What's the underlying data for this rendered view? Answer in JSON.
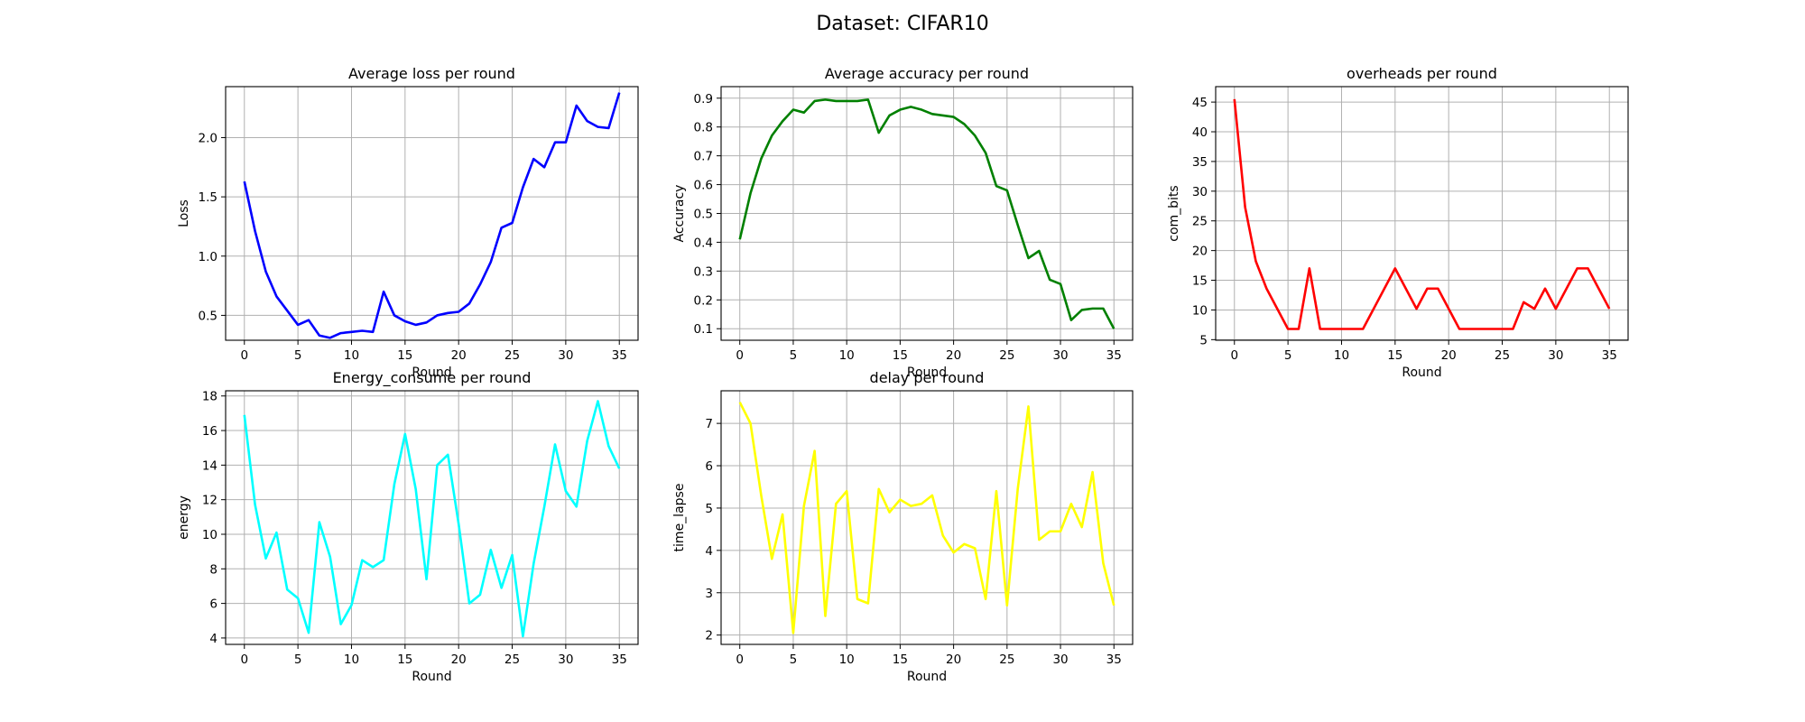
{
  "figure_title": "Dataset: CIFAR10",
  "chart_data": [
    {
      "type": "line",
      "title": "Average loss per round",
      "xlabel": "Round",
      "ylabel": "Loss",
      "xlim": [
        -1.75,
        36.75
      ],
      "ylim": [
        0.29,
        2.43
      ],
      "xticks": [
        0,
        5,
        10,
        15,
        20,
        25,
        30,
        35
      ],
      "yticks": [
        0.5,
        1.0,
        1.5,
        2.0
      ],
      "ytick_labels": [
        "0.5",
        "1.0",
        "1.5",
        "2.0"
      ],
      "grid": true,
      "color": "#0000ff",
      "series": [
        {
          "x": [
            0,
            1,
            2,
            3,
            4,
            5,
            6,
            7,
            8,
            9,
            10,
            11,
            12,
            13,
            14,
            15,
            16,
            17,
            18,
            19,
            20,
            21,
            22,
            23,
            24,
            25,
            26,
            27,
            28,
            29,
            30,
            31,
            32,
            33,
            34,
            35
          ],
          "values": [
            1.63,
            1.21,
            0.87,
            0.66,
            0.54,
            0.42,
            0.46,
            0.33,
            0.31,
            0.35,
            0.36,
            0.37,
            0.36,
            0.7,
            0.5,
            0.45,
            0.42,
            0.44,
            0.5,
            0.52,
            0.53,
            0.6,
            0.76,
            0.95,
            1.24,
            1.28,
            1.58,
            1.82,
            1.75,
            1.96,
            1.96,
            2.27,
            2.14,
            2.09,
            2.08,
            2.38
          ]
        }
      ]
    },
    {
      "type": "line",
      "title": "Average accuracy per round",
      "xlabel": "Round",
      "ylabel": "Accuracy",
      "xlim": [
        -1.75,
        36.75
      ],
      "ylim": [
        0.06,
        0.94
      ],
      "xticks": [
        0,
        5,
        10,
        15,
        20,
        25,
        30,
        35
      ],
      "yticks": [
        0.1,
        0.2,
        0.3,
        0.4,
        0.5,
        0.6,
        0.7,
        0.8,
        0.9
      ],
      "ytick_labels": [
        "0.1",
        "0.2",
        "0.3",
        "0.4",
        "0.5",
        "0.6",
        "0.7",
        "0.8",
        "0.9"
      ],
      "grid": true,
      "color": "#008000",
      "series": [
        {
          "x": [
            0,
            1,
            2,
            3,
            4,
            5,
            6,
            7,
            8,
            9,
            10,
            11,
            12,
            13,
            14,
            15,
            16,
            17,
            18,
            19,
            20,
            21,
            22,
            23,
            24,
            25,
            26,
            27,
            28,
            29,
            30,
            31,
            32,
            33,
            34,
            35
          ],
          "values": [
            0.41,
            0.57,
            0.69,
            0.77,
            0.82,
            0.86,
            0.85,
            0.89,
            0.895,
            0.89,
            0.89,
            0.89,
            0.895,
            0.78,
            0.84,
            0.86,
            0.87,
            0.86,
            0.845,
            0.84,
            0.835,
            0.81,
            0.77,
            0.71,
            0.595,
            0.58,
            0.46,
            0.345,
            0.37,
            0.27,
            0.255,
            0.13,
            0.165,
            0.17,
            0.17,
            0.1
          ]
        }
      ]
    },
    {
      "type": "line",
      "title": "overheads per round",
      "xlabel": "Round",
      "ylabel": "com_bits",
      "xlim": [
        -1.75,
        36.75
      ],
      "ylim": [
        4.9,
        47.6
      ],
      "xticks": [
        0,
        5,
        10,
        15,
        20,
        25,
        30,
        35
      ],
      "yticks": [
        5,
        10,
        15,
        20,
        25,
        30,
        35,
        40,
        45
      ],
      "ytick_labels": [
        "5",
        "10",
        "15",
        "20",
        "25",
        "30",
        "35",
        "40",
        "45"
      ],
      "grid": true,
      "color": "#ff0000",
      "series": [
        {
          "x": [
            0,
            1,
            2,
            3,
            4,
            5,
            6,
            7,
            8,
            9,
            10,
            11,
            12,
            13,
            14,
            15,
            16,
            17,
            18,
            19,
            20,
            21,
            22,
            23,
            24,
            25,
            26,
            27,
            28,
            29,
            30,
            31,
            32,
            33,
            34,
            35
          ],
          "values": [
            45.5,
            27.3,
            18.2,
            13.6,
            10.2,
            6.8,
            6.8,
            17.0,
            6.8,
            6.8,
            6.8,
            6.8,
            6.8,
            10.2,
            13.6,
            17.0,
            13.6,
            10.2,
            13.6,
            13.6,
            10.2,
            6.8,
            6.8,
            6.8,
            6.8,
            6.8,
            6.8,
            11.3,
            10.2,
            13.6,
            10.2,
            13.6,
            17.0,
            17.0,
            13.6,
            10.2
          ]
        }
      ]
    },
    {
      "type": "line",
      "title": "Energy_consume per round",
      "xlabel": "Round",
      "ylabel": "energy",
      "xlim": [
        -1.75,
        36.75
      ],
      "ylim": [
        3.63,
        18.3
      ],
      "xticks": [
        0,
        5,
        10,
        15,
        20,
        25,
        30,
        35
      ],
      "yticks": [
        4,
        6,
        8,
        10,
        12,
        14,
        16,
        18
      ],
      "ytick_labels": [
        "4",
        "6",
        "8",
        "10",
        "12",
        "14",
        "16",
        "18"
      ],
      "grid": true,
      "color": "#00ffff",
      "series": [
        {
          "x": [
            0,
            1,
            2,
            3,
            4,
            5,
            6,
            7,
            8,
            9,
            10,
            11,
            12,
            13,
            14,
            15,
            16,
            17,
            18,
            19,
            20,
            21,
            22,
            23,
            24,
            25,
            26,
            27,
            28,
            29,
            30,
            31,
            32,
            33,
            34,
            35
          ],
          "values": [
            16.9,
            11.7,
            8.6,
            10.1,
            6.8,
            6.3,
            4.3,
            10.7,
            8.7,
            4.8,
            5.9,
            8.5,
            8.1,
            8.5,
            12.9,
            15.8,
            12.6,
            7.4,
            14.0,
            14.6,
            10.6,
            6.0,
            6.5,
            9.1,
            6.9,
            8.8,
            4.1,
            8.3,
            11.6,
            15.2,
            12.5,
            11.6,
            15.4,
            17.7,
            15.1,
            13.8
          ]
        }
      ]
    },
    {
      "type": "line",
      "title": "delay per round",
      "xlabel": "Round",
      "ylabel": "time_lapse",
      "xlim": [
        -1.75,
        36.75
      ],
      "ylim": [
        1.78,
        7.77
      ],
      "xticks": [
        0,
        5,
        10,
        15,
        20,
        25,
        30,
        35
      ],
      "yticks": [
        2,
        3,
        4,
        5,
        6,
        7
      ],
      "ytick_labels": [
        "2",
        "3",
        "4",
        "5",
        "6",
        "7"
      ],
      "grid": true,
      "color": "#ffff00",
      "series": [
        {
          "x": [
            0,
            1,
            2,
            3,
            4,
            5,
            6,
            7,
            8,
            9,
            10,
            11,
            12,
            13,
            14,
            15,
            16,
            17,
            18,
            19,
            20,
            21,
            22,
            23,
            24,
            25,
            26,
            27,
            28,
            29,
            30,
            31,
            32,
            33,
            34,
            35
          ],
          "values": [
            7.5,
            7.0,
            5.3,
            3.8,
            4.85,
            2.05,
            5.05,
            6.35,
            2.45,
            5.1,
            5.4,
            2.85,
            2.75,
            5.45,
            4.9,
            5.2,
            5.05,
            5.1,
            5.3,
            4.35,
            3.95,
            4.15,
            4.05,
            2.85,
            5.4,
            2.7,
            5.45,
            7.4,
            4.25,
            4.45,
            4.45,
            5.1,
            4.55,
            5.85,
            3.7,
            2.7
          ]
        }
      ]
    }
  ]
}
